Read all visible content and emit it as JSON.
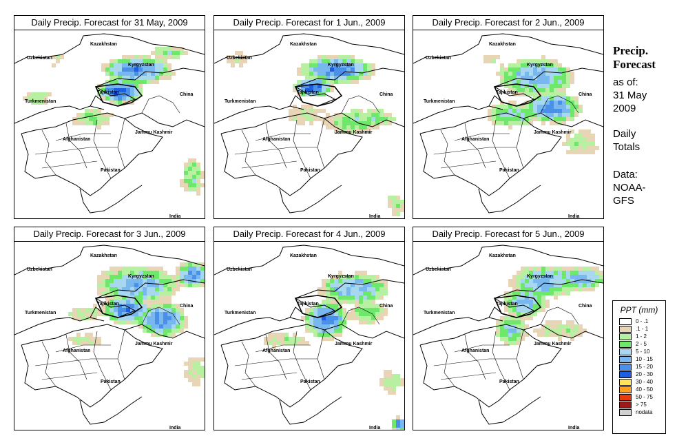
{
  "panels": [
    {
      "title": "Daily Precip. Forecast for  31 May, 2009",
      "scenario": 0
    },
    {
      "title": "Daily Precip. Forecast for  1 Jun., 2009",
      "scenario": 1
    },
    {
      "title": "Daily Precip. Forecast for  2 Jun., 2009",
      "scenario": 2
    },
    {
      "title": "Daily Precip. Forecast for  3 Jun., 2009",
      "scenario": 3
    },
    {
      "title": "Daily Precip. Forecast for  4 Jun., 2009",
      "scenario": 4
    },
    {
      "title": "Daily Precip. Forecast for  5 Jun., 2009",
      "scenario": 5
    }
  ],
  "map_labels": {
    "kazakhstan": "Kazakhstan",
    "uzbekistan": "Uzbekistan",
    "kyrgyzstan": "Kyrgyzstan",
    "tajikistan": "Tajikistan",
    "china": "China",
    "turkmenistan": "Turkmenistan",
    "afghanistan": "Afghanistan",
    "jammu_kashmir": "Jammu Kashmir",
    "pakistan": "Pakistan",
    "india": "India"
  },
  "sidebar": {
    "title_line1": "Precip.",
    "title_line2": "Forecast",
    "asof_line1": "as of:",
    "asof_line2": "31 May",
    "asof_line3": "2009",
    "daily_line1": "Daily",
    "daily_line2": "Totals",
    "data_line1": "Data:",
    "data_line2": "NOAA-",
    "data_line3": "GFS"
  },
  "legend": {
    "title": "PPT (mm)",
    "items": [
      {
        "label": "0 - .1",
        "color": "#ffffff"
      },
      {
        "label": ".1 - 1",
        "color": "#e8d5b5"
      },
      {
        "label": "1 - 2",
        "color": "#b6f0a0"
      },
      {
        "label": "2 - 5",
        "color": "#6ee86a"
      },
      {
        "label": "5 - 10",
        "color": "#a8d8f0"
      },
      {
        "label": "10 - 15",
        "color": "#78b8ee"
      },
      {
        "label": "15 - 20",
        "color": "#4a90e8"
      },
      {
        "label": "20 - 30",
        "color": "#1e5ee0"
      },
      {
        "label": "30 - 40",
        "color": "#ffe35a"
      },
      {
        "label": "40 - 50",
        "color": "#ffa020"
      },
      {
        "label": "50 - 75",
        "color": "#e83a10"
      },
      {
        "label": "> 75",
        "color": "#a01818"
      },
      {
        "label": "nodata",
        "color": "#d0d0d0"
      }
    ]
  }
}
